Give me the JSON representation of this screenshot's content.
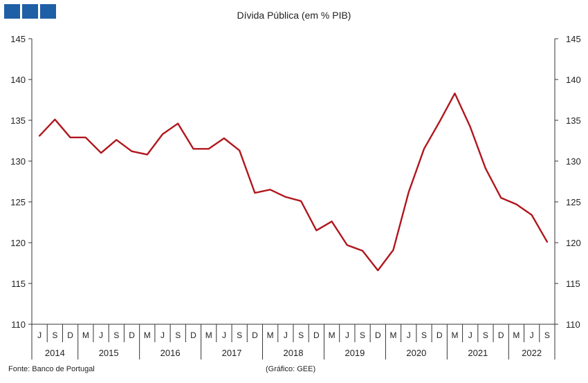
{
  "header": {
    "logo_icon": "logo-blocks-icon",
    "logo_color": "#1f5fa6"
  },
  "footer": {
    "source": "Fonte: Banco de Portugal",
    "credit": "(Gráfico: GEE)"
  },
  "chart_data": {
    "type": "line",
    "title": "Dívida Pública (em % PIB)",
    "xlabel": "",
    "ylabel": "",
    "ylim": [
      110,
      145
    ],
    "y_ticks": [
      110,
      115,
      120,
      125,
      130,
      135,
      140,
      145
    ],
    "y_axis_both_sides": true,
    "grid": false,
    "line_color": "#b0161c",
    "month_labels": [
      "J",
      "S",
      "D",
      "M",
      "J",
      "S",
      "D",
      "M",
      "J",
      "S",
      "D",
      "M",
      "J",
      "S",
      "D",
      "M",
      "J",
      "S",
      "D",
      "M",
      "J",
      "S",
      "D",
      "M",
      "J",
      "S",
      "D",
      "M",
      "J",
      "S",
      "D",
      "M",
      "J",
      "S"
    ],
    "year_groups": [
      {
        "label": "2014",
        "count": 3
      },
      {
        "label": "2015",
        "count": 4
      },
      {
        "label": "2016",
        "count": 4
      },
      {
        "label": "2017",
        "count": 4
      },
      {
        "label": "2018",
        "count": 4
      },
      {
        "label": "2019",
        "count": 4
      },
      {
        "label": "2020",
        "count": 4
      },
      {
        "label": "2021",
        "count": 4
      },
      {
        "label": "2022",
        "count": 3
      }
    ],
    "series": [
      {
        "values": [
          133.1,
          135.1,
          132.9,
          132.9,
          131.0,
          132.6,
          131.2,
          130.8,
          133.3,
          134.6,
          131.5,
          131.5,
          132.8,
          131.3,
          126.1,
          126.5,
          125.6,
          125.1,
          121.5,
          122.6,
          119.7,
          119.0,
          116.6,
          119.1,
          126.2,
          131.5,
          134.8,
          138.3,
          134.2,
          129.1,
          125.5,
          124.7,
          123.4,
          120.1
        ]
      }
    ]
  }
}
